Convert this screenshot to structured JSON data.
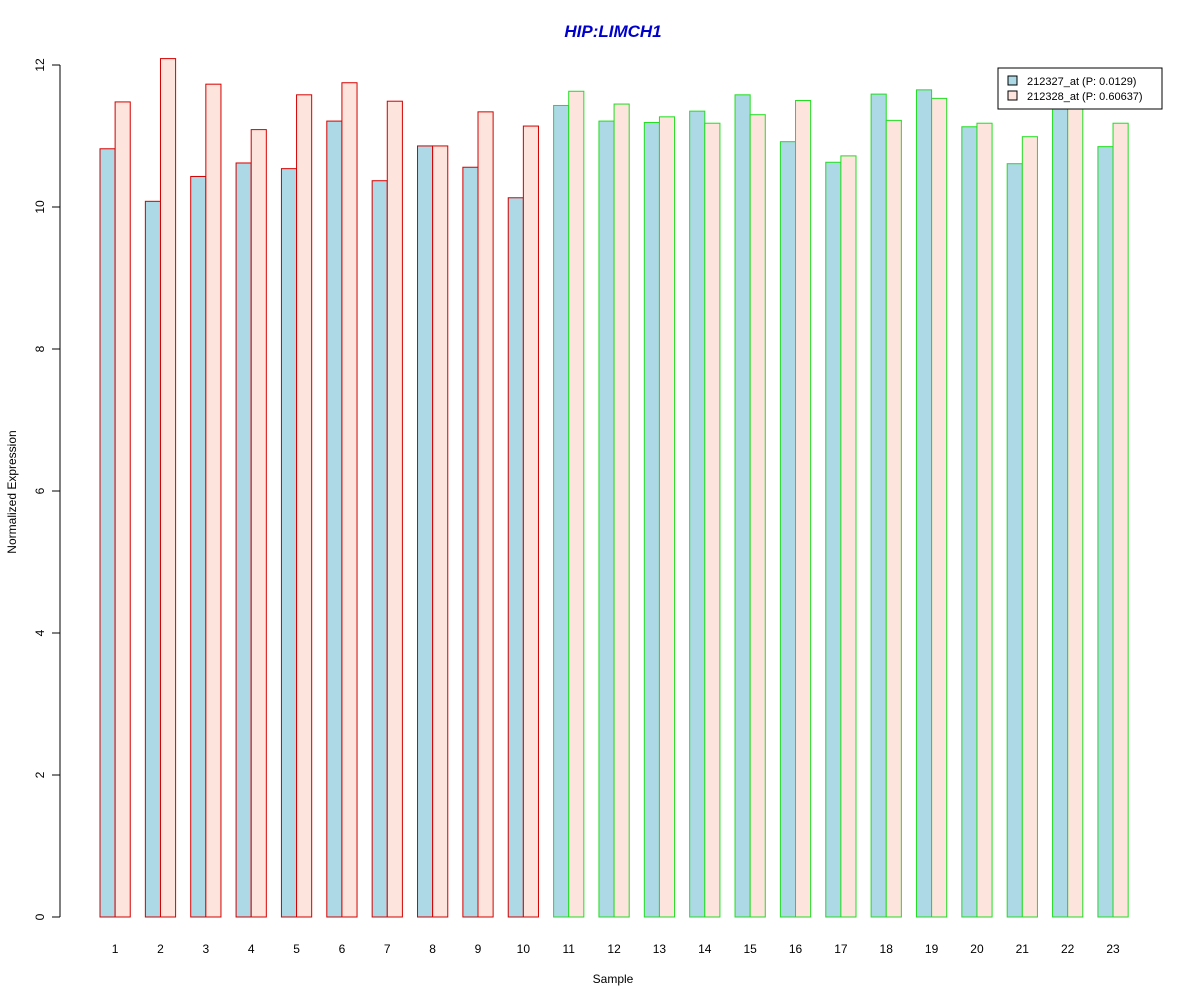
{
  "chart_data": {
    "type": "bar",
    "title": "HIP:LIMCH1",
    "xlabel": "Sample",
    "ylabel": "Normalized Expression",
    "categories": [
      "1",
      "2",
      "3",
      "4",
      "5",
      "6",
      "7",
      "8",
      "9",
      "10",
      "11",
      "12",
      "13",
      "14",
      "15",
      "16",
      "17",
      "18",
      "19",
      "20",
      "21",
      "22",
      "23"
    ],
    "ylim": [
      0,
      12
    ],
    "yticks": [
      "0",
      "2",
      "4",
      "6",
      "8",
      "10",
      "12"
    ],
    "series": [
      {
        "name": "212327_at (P: 0.0129)",
        "fill": "#add8e6",
        "values": [
          10.82,
          10.08,
          10.43,
          10.62,
          10.54,
          11.21,
          10.37,
          10.86,
          10.56,
          10.13,
          11.43,
          11.21,
          11.19,
          11.35,
          11.58,
          10.92,
          10.63,
          11.59,
          11.65,
          11.13,
          10.61,
          11.41,
          10.85
        ]
      },
      {
        "name": "212328_at (P: 0.60637)",
        "fill": "#fde4dc",
        "values": [
          11.48,
          12.09,
          11.73,
          11.09,
          11.58,
          11.75,
          11.49,
          10.86,
          11.34,
          11.14,
          11.63,
          11.45,
          11.27,
          11.18,
          11.3,
          11.5,
          10.72,
          11.22,
          11.53,
          11.18,
          10.99,
          11.4,
          11.18
        ]
      }
    ],
    "group_border_colors": [
      "#d40000",
      "#d40000",
      "#d40000",
      "#d40000",
      "#d40000",
      "#d40000",
      "#d40000",
      "#d40000",
      "#d40000",
      "#d40000",
      "#22dd22",
      "#22dd22",
      "#22dd22",
      "#22dd22",
      "#22dd22",
      "#22dd22",
      "#22dd22",
      "#22dd22",
      "#22dd22",
      "#22dd22",
      "#22dd22",
      "#22dd22",
      "#22dd22"
    ],
    "title_color": "#0000cc",
    "legend_position": "top-right",
    "grid": false
  }
}
